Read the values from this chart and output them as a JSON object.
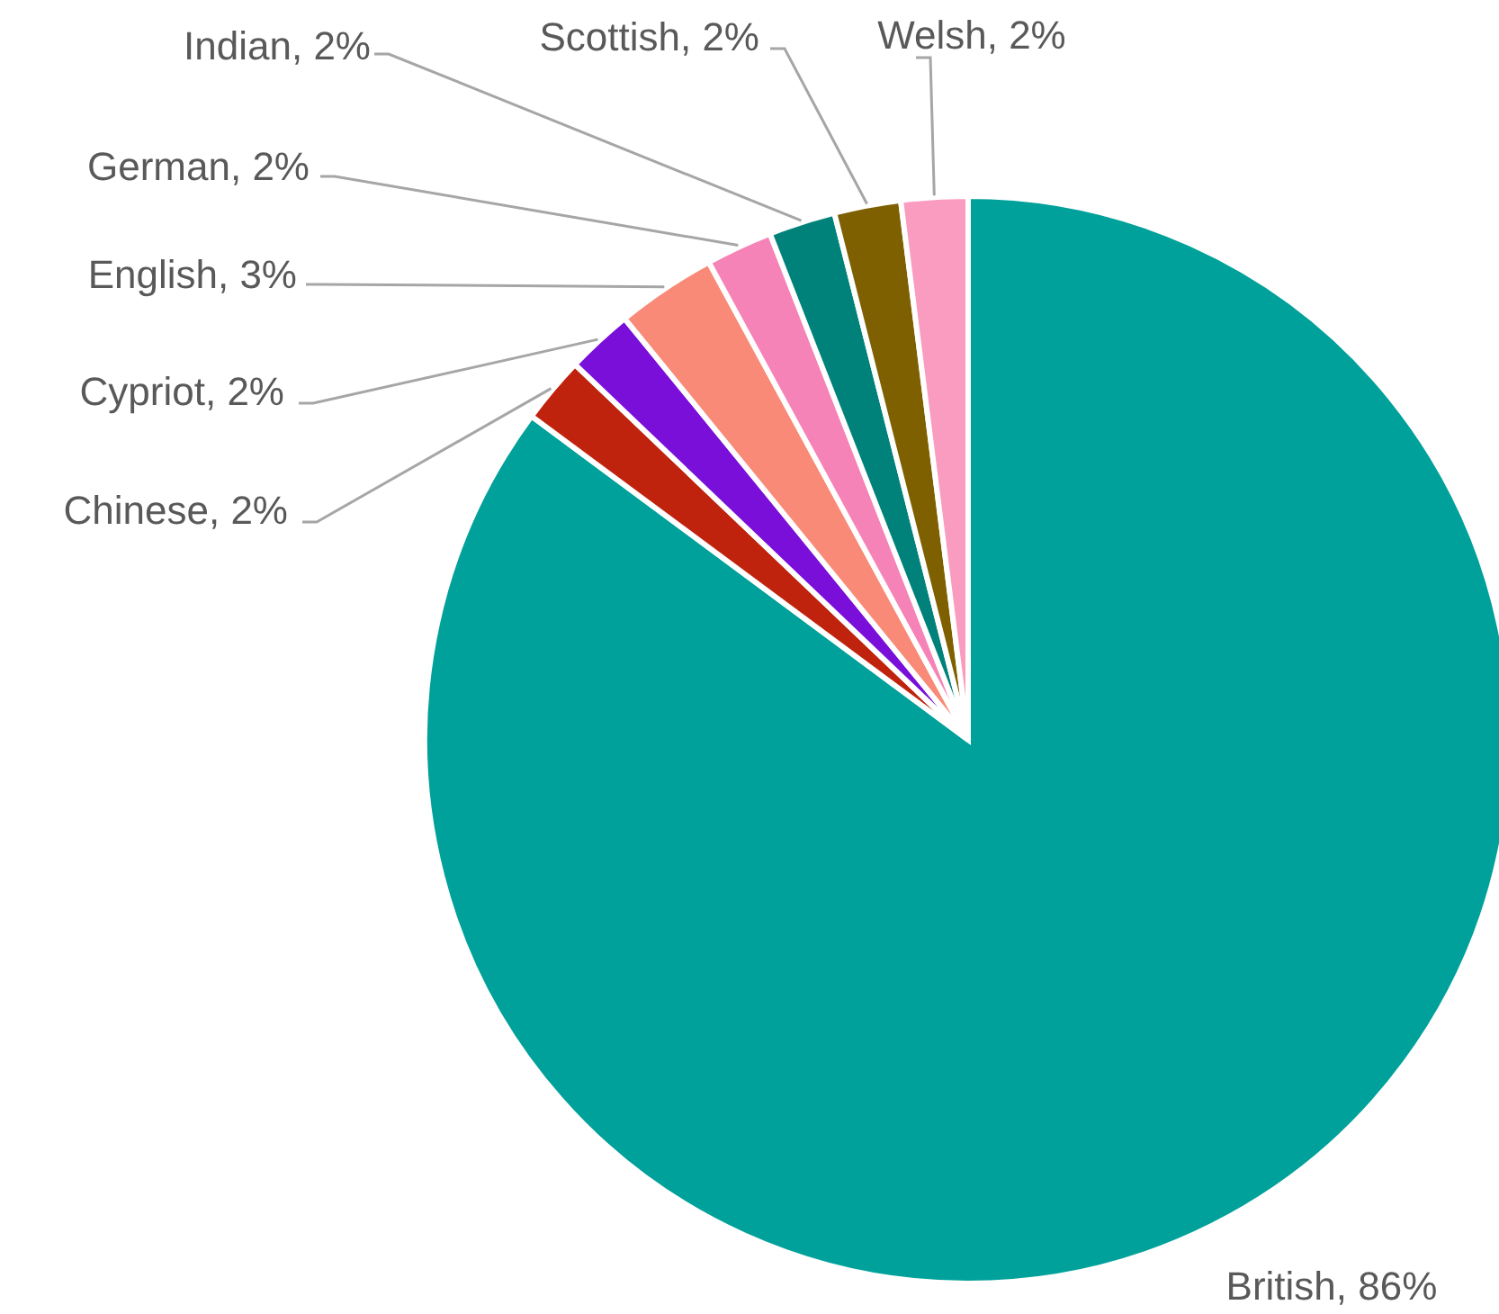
{
  "chart_data": {
    "type": "pie",
    "categories": [
      "British",
      "Chinese",
      "Cypriot",
      "English",
      "German",
      "Indian",
      "Scottish",
      "Welsh"
    ],
    "values": [
      86,
      2,
      2,
      3,
      2,
      2,
      2,
      2
    ],
    "value_labels": [
      "86%",
      "2%",
      "2%",
      "3%",
      "2%",
      "2%",
      "2%",
      "2%"
    ],
    "colors": [
      "#00a19a",
      "#c0230d",
      "#7a0fd9",
      "#f98a77",
      "#f683b7",
      "#00827a",
      "#7f6000",
      "#f99cc0"
    ]
  }
}
